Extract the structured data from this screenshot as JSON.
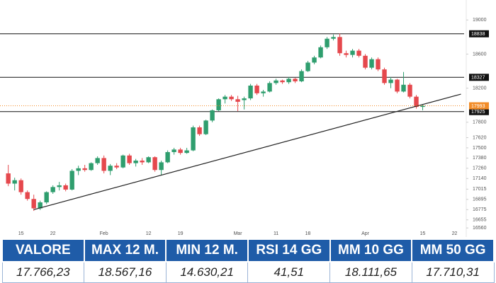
{
  "chart_data": {
    "type": "candlestick",
    "up_color": "#2f9e6e",
    "down_color": "#e5484d",
    "x": [
      0,
      1,
      2,
      3,
      4,
      5,
      6,
      7,
      8,
      9,
      10,
      11,
      12,
      13,
      14,
      15,
      16,
      17,
      18,
      19,
      20,
      21,
      22,
      23,
      24,
      25,
      26,
      27,
      28,
      29,
      30,
      31,
      32,
      33,
      34,
      35,
      36,
      37,
      38,
      39,
      40,
      41,
      42,
      43,
      44,
      45,
      46,
      47,
      48,
      49,
      50,
      51,
      52,
      53,
      54,
      55,
      56,
      57,
      58,
      59,
      60,
      61,
      62,
      63,
      64,
      65
    ],
    "open": [
      17200,
      17080,
      17120,
      16980,
      16900,
      16790,
      16860,
      16980,
      17040,
      17060,
      17010,
      17230,
      17260,
      17240,
      17320,
      17380,
      17230,
      17290,
      17270,
      17410,
      17320,
      17350,
      17330,
      17390,
      17240,
      17330,
      17450,
      17480,
      17440,
      17470,
      17740,
      17660,
      17820,
      17940,
      18070,
      18100,
      18070,
      18060,
      18080,
      18230,
      18140,
      18160,
      18260,
      18290,
      18270,
      18310,
      18280,
      18400,
      18500,
      18560,
      18680,
      18780,
      18800,
      18610,
      18590,
      18640,
      18580,
      18440,
      18540,
      18420,
      18260,
      18300,
      18160,
      18240,
      18100,
      17980
    ],
    "high": [
      17300,
      17150,
      17140,
      17000,
      16950,
      16880,
      16990,
      17060,
      17100,
      17080,
      17250,
      17290,
      17300,
      17330,
      17400,
      17410,
      17310,
      17320,
      17420,
      17430,
      17370,
      17380,
      17400,
      17400,
      17350,
      17470,
      17500,
      17500,
      17500,
      17760,
      17760,
      17830,
      17950,
      18080,
      18120,
      18120,
      18110,
      18100,
      18250,
      18250,
      18180,
      18280,
      18310,
      18300,
      18330,
      18320,
      18420,
      18520,
      18580,
      18700,
      18800,
      18830,
      18840,
      18640,
      18660,
      18660,
      18600,
      18560,
      18560,
      18440,
      18330,
      18310,
      18390,
      18260,
      18120,
      18010
    ],
    "low": [
      17050,
      17000,
      16950,
      16880,
      16760,
      16770,
      16840,
      16960,
      17000,
      16990,
      17000,
      17180,
      17220,
      17230,
      17300,
      17200,
      17180,
      17250,
      17260,
      17300,
      17280,
      17300,
      17320,
      17220,
      17180,
      17320,
      17420,
      17420,
      17430,
      17460,
      17640,
      17650,
      17800,
      17930,
      18020,
      18050,
      17930,
      17950,
      18060,
      18120,
      18100,
      18150,
      18240,
      18250,
      18250,
      18260,
      18270,
      18390,
      18480,
      18550,
      18660,
      18760,
      18580,
      18560,
      18560,
      18560,
      18420,
      18420,
      18400,
      18240,
      18200,
      18140,
      18150,
      18080,
      17960,
      17940
    ],
    "close": [
      17080,
      17120,
      16980,
      16900,
      16790,
      16860,
      16980,
      17040,
      17060,
      17010,
      17230,
      17260,
      17240,
      17320,
      17380,
      17230,
      17290,
      17270,
      17410,
      17320,
      17350,
      17330,
      17390,
      17240,
      17330,
      17450,
      17480,
      17440,
      17470,
      17740,
      17660,
      17820,
      17940,
      18070,
      18100,
      18070,
      18040,
      18080,
      18230,
      18140,
      18160,
      18260,
      18290,
      18270,
      18310,
      18280,
      18400,
      18500,
      18560,
      18680,
      18780,
      18800,
      18610,
      18590,
      18640,
      18580,
      18440,
      18540,
      18420,
      18260,
      18300,
      18160,
      18240,
      18100,
      17980,
      17993
    ],
    "xlim": [
      -1.3,
      71.5
    ],
    "xticks": [
      {
        "value": 2,
        "label": "15"
      },
      {
        "value": 7,
        "label": "22"
      },
      {
        "value": 15,
        "label": "Feb"
      },
      {
        "value": 22,
        "label": "12"
      },
      {
        "value": 27,
        "label": "19"
      },
      {
        "value": 36,
        "label": "Mar"
      },
      {
        "value": 42,
        "label": "11"
      },
      {
        "value": 47,
        "label": "18"
      },
      {
        "value": 56,
        "label": "Apr"
      },
      {
        "value": 65,
        "label": "15"
      },
      {
        "value": 70,
        "label": "22"
      }
    ],
    "ylim": [
      16520,
      19060
    ],
    "yticks": [
      19000,
      18600,
      18200,
      17800,
      17620,
      17500,
      17380,
      17260,
      17140,
      17015,
      16895,
      16775,
      16655,
      16560
    ],
    "hlines": [
      18838,
      18327,
      17925
    ],
    "last_price": 17993,
    "last_price_color": "#f28c28",
    "trendline": {
      "x": [
        4,
        71
      ],
      "y": [
        16775,
        18130
      ]
    }
  },
  "table": {
    "headers": [
      "VALORE",
      "MAX 12 M.",
      "MIN 12 M.",
      "RSI 14 GG",
      "MM 10 GG",
      "MM 50 GG"
    ],
    "values": [
      "17.766,23",
      "18.567,16",
      "14.630,21",
      "41,51",
      "18.111,65",
      "17.710,31"
    ]
  }
}
